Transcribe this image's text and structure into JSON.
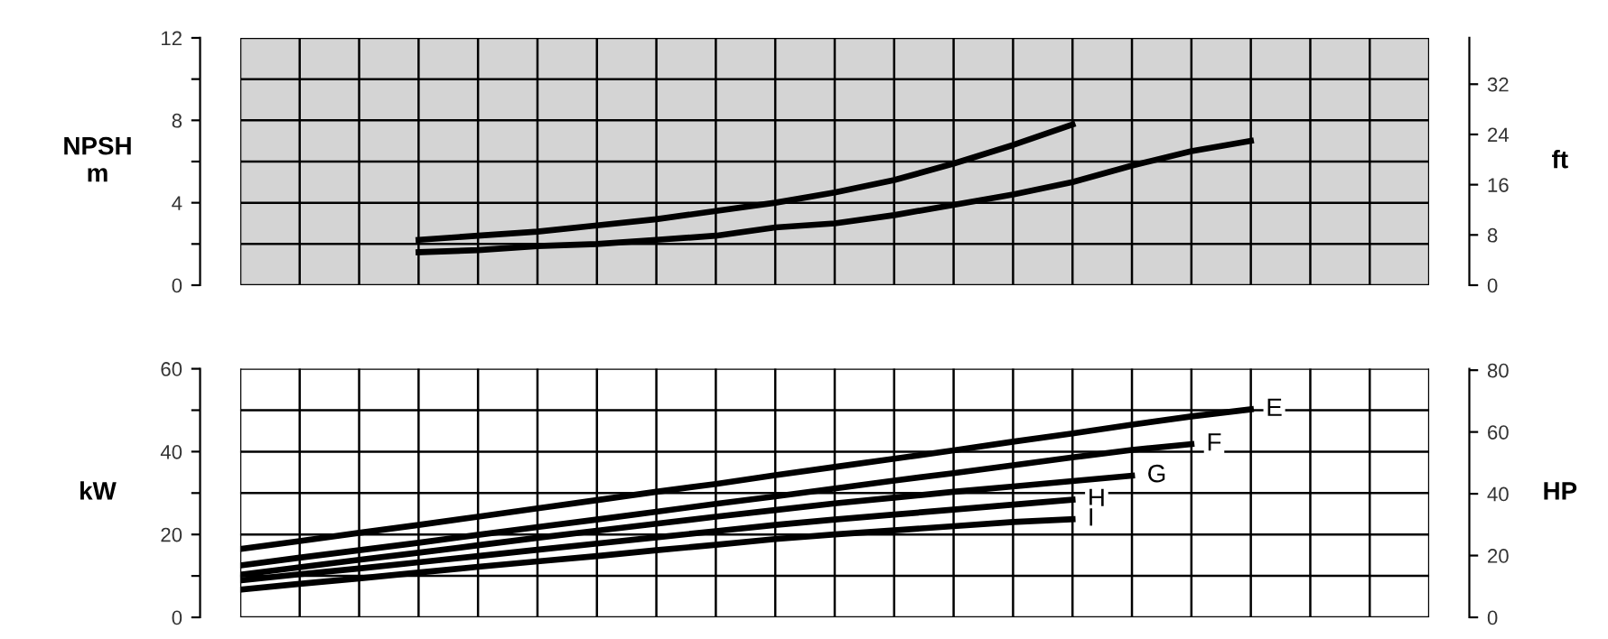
{
  "chart_data": [
    {
      "type": "line",
      "ylabel": "NPSH\nm",
      "y2label": "ft",
      "categories": [
        null,
        null,
        null,
        null,
        null,
        null,
        null,
        null,
        null,
        null,
        null,
        null,
        null,
        null,
        null,
        null,
        null,
        null,
        null,
        null,
        null
      ],
      "ylim": [
        0,
        12
      ],
      "yticks": [
        0,
        {
          "value": 2,
          "label": null
        },
        4,
        {
          "value": 6,
          "label": null
        },
        8,
        {
          "value": 10,
          "label": null
        },
        12
      ],
      "y2lim": [
        0,
        39.37
      ],
      "y2ticks": [
        0,
        8,
        16,
        24,
        32
      ],
      "grid": true,
      "marker": "none",
      "line_style": "solid",
      "series": [
        {
          "color": "#000000",
          "values": [
            null,
            null,
            null,
            2.2,
            2.4,
            2.6,
            2.9,
            3.2,
            3.6,
            4.0,
            4.5,
            5.1,
            5.9,
            6.8,
            7.8,
            null,
            null,
            null,
            null,
            null,
            null
          ]
        },
        {
          "color": "#000000",
          "values": [
            null,
            null,
            null,
            1.6,
            1.7,
            1.9,
            2.0,
            2.2,
            2.4,
            2.8,
            3.0,
            3.4,
            3.9,
            4.4,
            5.0,
            5.8,
            6.5,
            7.0,
            null,
            null,
            null
          ]
        }
      ]
    },
    {
      "type": "line",
      "ylabel": "kW",
      "y2label": "HP",
      "categories": [
        null,
        null,
        null,
        null,
        null,
        null,
        null,
        null,
        null,
        null,
        null,
        null,
        null,
        null,
        null,
        null,
        null,
        null,
        null,
        null,
        null
      ],
      "ylim": [
        0,
        60
      ],
      "yticks": [
        0,
        {
          "value": 10,
          "label": null
        },
        20,
        {
          "value": 30,
          "label": null
        },
        40,
        {
          "value": 50,
          "label": null
        },
        60
      ],
      "y2lim": [
        0,
        80.46
      ],
      "y2ticks": [
        0,
        20,
        40,
        60,
        80
      ],
      "grid": true,
      "marker": "none",
      "line_style": "solid",
      "series": [
        {
          "name": "E",
          "color": "#000000",
          "values": [
            16.5,
            18.4,
            20.4,
            22.3,
            24.3,
            26.3,
            28.3,
            30.3,
            32.2,
            34.3,
            36.3,
            38.3,
            40.3,
            42.4,
            44.4,
            46.5,
            48.5,
            50.2,
            null,
            null,
            null
          ]
        },
        {
          "name": "F",
          "color": "#000000",
          "values": [
            12.5,
            14.4,
            16.2,
            18.0,
            19.9,
            21.8,
            23.6,
            25.5,
            27.4,
            29.2,
            31.1,
            33.0,
            34.8,
            36.7,
            38.6,
            40.4,
            41.8,
            null,
            null,
            null,
            null
          ]
        },
        {
          "name": "G",
          "color": "#000000",
          "values": [
            10.3,
            12.1,
            13.9,
            15.6,
            17.4,
            19.2,
            20.9,
            22.6,
            24.3,
            25.9,
            27.5,
            28.9,
            30.3,
            31.6,
            32.9,
            34.2,
            null,
            null,
            null,
            null,
            null
          ]
        },
        {
          "name": "H",
          "color": "#000000",
          "values": [
            8.9,
            10.4,
            11.8,
            13.3,
            14.8,
            16.3,
            17.8,
            19.3,
            20.8,
            22.3,
            23.6,
            24.8,
            26.0,
            27.2,
            28.4,
            null,
            null,
            null,
            null,
            null,
            null
          ]
        },
        {
          "name": "I",
          "color": "#000000",
          "values": [
            6.7,
            8.1,
            9.4,
            10.8,
            12.2,
            13.5,
            14.8,
            16.2,
            17.5,
            18.9,
            20.0,
            21.0,
            22.0,
            23.0,
            23.7,
            null,
            null,
            null,
            null,
            null,
            null
          ]
        }
      ]
    }
  ]
}
